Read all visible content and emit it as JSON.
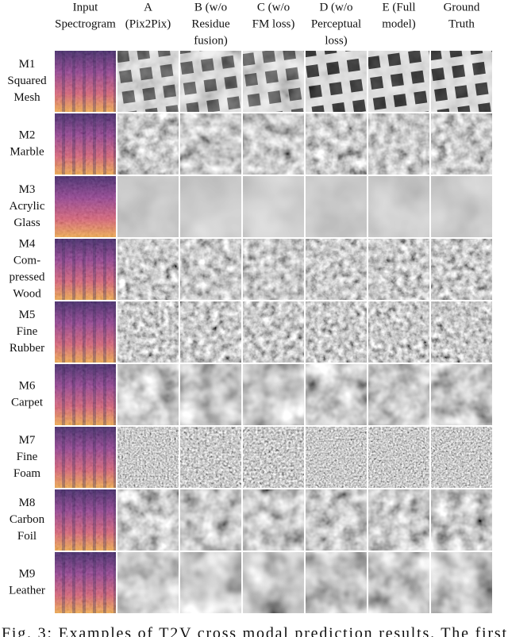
{
  "header": {
    "columns": [
      [
        "Input",
        "Spectrogram"
      ],
      [
        "A",
        "(Pix2Pix)"
      ],
      [
        "B (w/o",
        "Residue",
        "fusion)"
      ],
      [
        "C (w/o",
        "FM loss)"
      ],
      [
        "D (w/o",
        "Perceptual",
        "loss)"
      ],
      [
        "E (Full",
        "model)"
      ],
      [
        "Ground",
        "Truth"
      ]
    ]
  },
  "rows": [
    [
      "M1",
      "Squared",
      "Mesh"
    ],
    [
      "M2",
      "Marble"
    ],
    [
      "M3",
      "Acrylic",
      "Glass"
    ],
    [
      "M4",
      "Com-",
      "pressed",
      "Wood"
    ],
    [
      "M5",
      "Fine",
      "Rubber"
    ],
    [
      "M6",
      "Carpet"
    ],
    [
      "M7",
      "Fine",
      "Foam"
    ],
    [
      "M8",
      "Carbon",
      "Foil"
    ],
    [
      "M9",
      "Leather"
    ]
  ],
  "caption": "Fig. 3: Examples of T2V cross modal prediction results. The first"
}
